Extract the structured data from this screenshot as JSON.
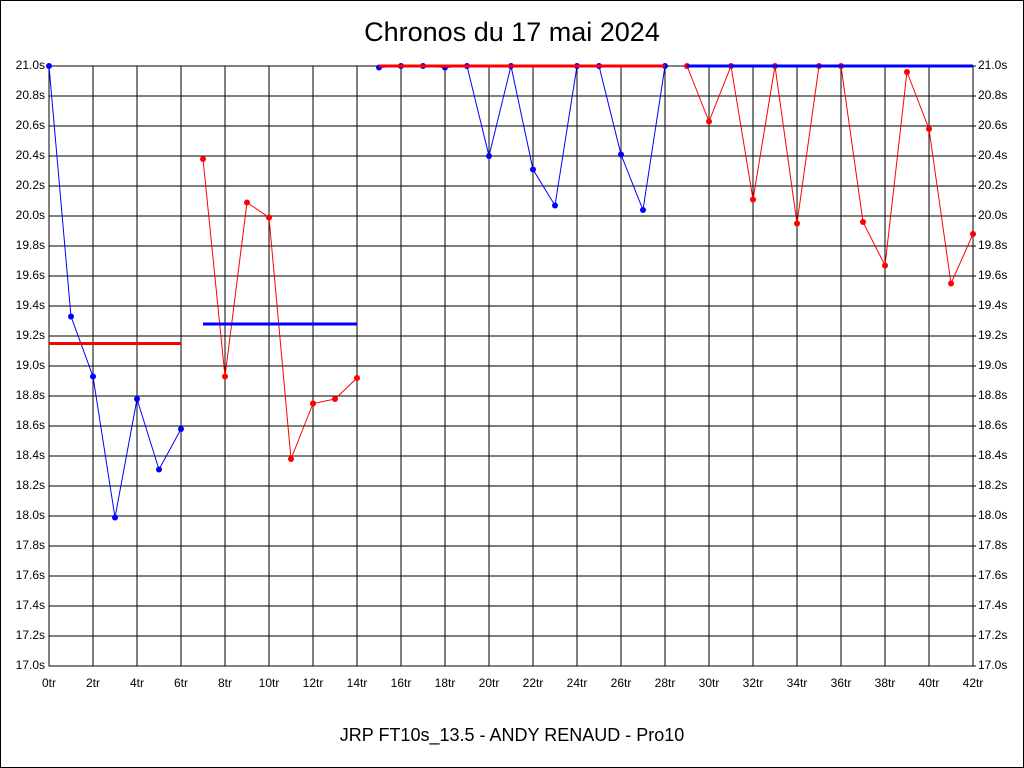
{
  "chart_data": {
    "type": "line",
    "title": "Chronos du 17 mai 2024",
    "x_label": "JRP FT10s_13.5 - ANDY RENAUD - Pro10",
    "xlim": [
      0,
      42
    ],
    "xticks": [
      {
        "value": 0,
        "label": "0tr"
      },
      {
        "value": 2,
        "label": "2tr"
      },
      {
        "value": 4,
        "label": "4tr"
      },
      {
        "value": 6,
        "label": "6tr"
      },
      {
        "value": 8,
        "label": "8tr"
      },
      {
        "value": 10,
        "label": "10tr"
      },
      {
        "value": 12,
        "label": "12tr"
      },
      {
        "value": 14,
        "label": "14tr"
      },
      {
        "value": 16,
        "label": "16tr"
      },
      {
        "value": 18,
        "label": "18tr"
      },
      {
        "value": 20,
        "label": "20tr"
      },
      {
        "value": 22,
        "label": "22tr"
      },
      {
        "value": 24,
        "label": "24tr"
      },
      {
        "value": 26,
        "label": "26tr"
      },
      {
        "value": 28,
        "label": "28tr"
      },
      {
        "value": 30,
        "label": "30tr"
      },
      {
        "value": 32,
        "label": "32tr"
      },
      {
        "value": 34,
        "label": "34tr"
      },
      {
        "value": 36,
        "label": "36tr"
      },
      {
        "value": 38,
        "label": "38tr"
      },
      {
        "value": 40,
        "label": "40tr"
      },
      {
        "value": 42,
        "label": "42tr"
      }
    ],
    "ylim": [
      17.0,
      21.0
    ],
    "yticks": [
      {
        "value": 17.0,
        "label": "17.0s"
      },
      {
        "value": 17.2,
        "label": "17.2s"
      },
      {
        "value": 17.4,
        "label": "17.4s"
      },
      {
        "value": 17.6,
        "label": "17.6s"
      },
      {
        "value": 17.8,
        "label": "17.8s"
      },
      {
        "value": 18.0,
        "label": "18.0s"
      },
      {
        "value": 18.2,
        "label": "18.2s"
      },
      {
        "value": 18.4,
        "label": "18.4s"
      },
      {
        "value": 18.6,
        "label": "18.6s"
      },
      {
        "value": 18.8,
        "label": "18.8s"
      },
      {
        "value": 19.0,
        "label": "19.0s"
      },
      {
        "value": 19.2,
        "label": "19.2s"
      },
      {
        "value": 19.4,
        "label": "19.4s"
      },
      {
        "value": 19.6,
        "label": "19.6s"
      },
      {
        "value": 19.8,
        "label": "19.8s"
      },
      {
        "value": 20.0,
        "label": "20.0s"
      },
      {
        "value": 20.2,
        "label": "20.2s"
      },
      {
        "value": 20.4,
        "label": "20.4s"
      },
      {
        "value": 20.6,
        "label": "20.6s"
      },
      {
        "value": 20.8,
        "label": "20.8s"
      },
      {
        "value": 21.0,
        "label": "21.0s"
      }
    ],
    "y2lim": [
      17.0,
      21.0
    ],
    "y2ticks": [
      {
        "value": 17.0,
        "label": "17.0s"
      },
      {
        "value": 17.2,
        "label": "17.2s"
      },
      {
        "value": 17.4,
        "label": "17.4s"
      },
      {
        "value": 17.6,
        "label": "17.6s"
      },
      {
        "value": 17.8,
        "label": "17.8s"
      },
      {
        "value": 18.0,
        "label": "18.0s"
      },
      {
        "value": 18.2,
        "label": "18.2s"
      },
      {
        "value": 18.4,
        "label": "18.4s"
      },
      {
        "value": 18.6,
        "label": "18.6s"
      },
      {
        "value": 18.8,
        "label": "18.8s"
      },
      {
        "value": 19.0,
        "label": "19.0s"
      },
      {
        "value": 19.2,
        "label": "19.2s"
      },
      {
        "value": 19.4,
        "label": "19.4s"
      },
      {
        "value": 19.6,
        "label": "19.6s"
      },
      {
        "value": 19.8,
        "label": "19.8s"
      },
      {
        "value": 20.0,
        "label": "20.0s"
      },
      {
        "value": 20.2,
        "label": "20.2s"
      },
      {
        "value": 20.4,
        "label": "20.4s"
      },
      {
        "value": 20.6,
        "label": "20.6s"
      },
      {
        "value": 20.8,
        "label": "20.8s"
      },
      {
        "value": 21.0,
        "label": "21.0s"
      }
    ],
    "grid": true,
    "series": [
      {
        "color": "#0000ff",
        "markers": true,
        "x": [
          0,
          1,
          2,
          3,
          4,
          5,
          6
        ],
        "values": [
          21.0,
          19.33,
          18.93,
          17.99,
          18.78,
          18.31,
          18.58
        ]
      },
      {
        "color": "#ff0000",
        "markers": false,
        "x": [
          0,
          6
        ],
        "values": [
          19.15,
          19.15
        ]
      },
      {
        "color": "#ff0000",
        "markers": true,
        "x": [
          7,
          8,
          9,
          10,
          11,
          12,
          13,
          14
        ],
        "values": [
          20.38,
          18.93,
          20.09,
          19.99,
          18.38,
          18.75,
          18.78,
          18.92
        ]
      },
      {
        "color": "#0000ff",
        "markers": false,
        "x": [
          7,
          14
        ],
        "values": [
          19.28,
          19.28
        ]
      },
      {
        "color": "#0000ff",
        "markers": true,
        "x": [
          15,
          16,
          17,
          18,
          19,
          20,
          21,
          22,
          23,
          24,
          25,
          26,
          27,
          28
        ],
        "values": [
          20.99,
          21.0,
          21.0,
          20.99,
          21.0,
          20.4,
          21.0,
          20.31,
          20.07,
          21.0,
          21.0,
          20.41,
          20.04,
          21.0
        ]
      },
      {
        "color": "#ff0000",
        "markers": false,
        "x": [
          15,
          28
        ],
        "values": [
          21.0,
          21.0
        ]
      },
      {
        "color": "#ff0000",
        "markers": true,
        "x": [
          29,
          30,
          31,
          32,
          33,
          34,
          35,
          36,
          37,
          38,
          39,
          40,
          41,
          42
        ],
        "values": [
          21.0,
          20.63,
          21.0,
          20.11,
          21.0,
          19.95,
          21.0,
          21.0,
          19.96,
          19.67,
          20.96,
          20.58,
          19.55,
          19.88
        ]
      },
      {
        "color": "#0000ff",
        "markers": false,
        "x": [
          29,
          42
        ],
        "values": [
          21.0,
          21.0
        ]
      }
    ]
  }
}
